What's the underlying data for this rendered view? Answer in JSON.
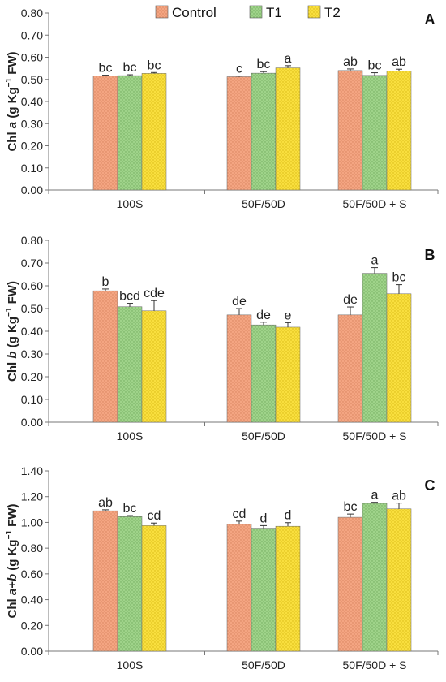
{
  "legend": [
    {
      "name": "Control",
      "color": "#f4a582",
      "dot": "#c9734d"
    },
    {
      "name": "T1",
      "color": "#9fd38a",
      "dot": "#5d9a4a"
    },
    {
      "name": "T2",
      "color": "#f9df3e",
      "dot": "#c9a800"
    }
  ],
  "chart_data": [
    {
      "type": "bar",
      "panel_label": "A",
      "ylabel_parts": [
        "Chl ",
        "a",
        " (g Kg",
        "−1",
        " FW)"
      ],
      "ylim": [
        0,
        0.8
      ],
      "yticks": [
        "0.00",
        "0.10",
        "0.20",
        "0.30",
        "0.40",
        "0.50",
        "0.60",
        "0.70",
        "0.80"
      ],
      "categories": [
        "100S",
        "50F/50D",
        "50F/50D + S"
      ],
      "series": [
        {
          "name": "Control",
          "values": [
            0.515,
            0.512,
            0.54
          ],
          "errors": [
            0.004,
            0.003,
            0.007
          ],
          "letters": [
            "bc",
            "c",
            "ab"
          ]
        },
        {
          "name": "T1",
          "values": [
            0.517,
            0.528,
            0.518
          ],
          "errors": [
            0.004,
            0.007,
            0.012
          ],
          "letters": [
            "bc",
            "bc",
            "bc"
          ]
        },
        {
          "name": "T2",
          "values": [
            0.527,
            0.552,
            0.538
          ],
          "errors": [
            0.004,
            0.01,
            0.008
          ],
          "letters": [
            "bc",
            "a",
            "ab"
          ]
        }
      ]
    },
    {
      "type": "bar",
      "panel_label": "B",
      "ylabel_parts": [
        "Chl ",
        "b",
        " (g Kg",
        "−1",
        " FW)"
      ],
      "ylim": [
        0,
        0.8
      ],
      "yticks": [
        "0.00",
        "0.10",
        "0.20",
        "0.30",
        "0.40",
        "0.50",
        "0.60",
        "0.70",
        "0.80"
      ],
      "categories": [
        "100S",
        "50F/50D",
        "50F/50D + S"
      ],
      "series": [
        {
          "name": "Control",
          "values": [
            0.578,
            0.472,
            0.472
          ],
          "errors": [
            0.008,
            0.028,
            0.035
          ],
          "letters": [
            "b",
            "de",
            "de"
          ]
        },
        {
          "name": "T1",
          "values": [
            0.508,
            0.428,
            0.655
          ],
          "errors": [
            0.015,
            0.012,
            0.025
          ],
          "letters": [
            "bcd",
            "de",
            "a"
          ]
        },
        {
          "name": "T2",
          "values": [
            0.49,
            0.418,
            0.565
          ],
          "errors": [
            0.045,
            0.02,
            0.04
          ],
          "letters": [
            "cde",
            "e",
            "bc"
          ]
        }
      ]
    },
    {
      "type": "bar",
      "panel_label": "C",
      "ylabel_parts": [
        "Chl ",
        "a+b",
        " (g Kg",
        "−1",
        " FW)"
      ],
      "ylim": [
        0,
        1.4
      ],
      "yticks": [
        "0.00",
        "0.20",
        "0.40",
        "0.60",
        "0.80",
        "1.00",
        "1.20",
        "1.40"
      ],
      "categories": [
        "100S",
        "50F/50D",
        "50F/50D + S"
      ],
      "series": [
        {
          "name": "Control",
          "values": [
            1.09,
            0.985,
            1.04
          ],
          "errors": [
            0.008,
            0.025,
            0.025
          ],
          "letters": [
            "ab",
            "cd",
            "bc"
          ]
        },
        {
          "name": "T1",
          "values": [
            1.045,
            0.955,
            1.148
          ],
          "errors": [
            0.008,
            0.02,
            0.008
          ],
          "letters": [
            "bc",
            "d",
            "a"
          ]
        },
        {
          "name": "T2",
          "values": [
            0.975,
            0.97,
            1.105
          ],
          "errors": [
            0.02,
            0.028,
            0.045
          ],
          "letters": [
            "cd",
            "d",
            "ab"
          ]
        }
      ]
    }
  ]
}
